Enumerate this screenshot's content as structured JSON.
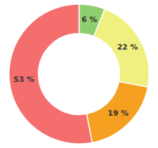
{
  "chart_data": {
    "type": "donut",
    "values": [
      6,
      22,
      19,
      53
    ],
    "value_labels": [
      "6 %",
      "22 %",
      "19 %",
      "53 %"
    ],
    "colors": [
      "#8fce6e",
      "#f0f080",
      "#f5a020",
      "#f46e6e"
    ],
    "data_labels": true
  }
}
